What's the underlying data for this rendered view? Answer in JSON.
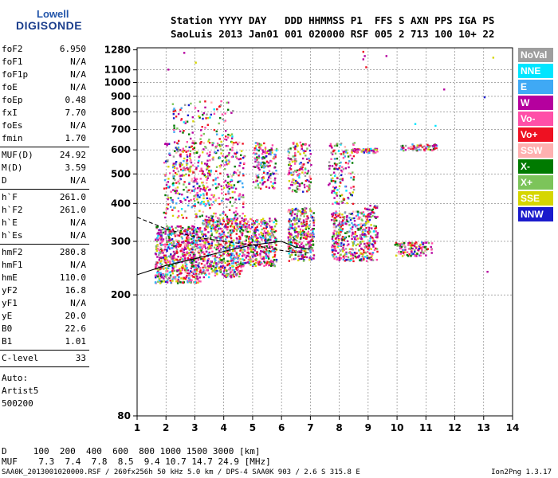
{
  "logo": {
    "line1": "Lowell",
    "line2": "DIGISONDE"
  },
  "header": {
    "row1": "Station YYYY DAY   DDD HHMMSS P1  FFS S AXN PPS IGA PS",
    "row2": "SaoLuis 2013 Jan01 001 020000 RSF 005 2 713 100 10+ 22"
  },
  "params_groups": [
    [
      [
        "foF2",
        "6.950"
      ],
      [
        "foF1",
        "N/A"
      ],
      [
        "foF1p",
        "N/A"
      ],
      [
        "foE",
        "N/A"
      ],
      [
        "foEp",
        "0.48"
      ],
      [
        "fxI",
        "7.70"
      ],
      [
        "foEs",
        "N/A"
      ],
      [
        "fmin",
        "1.70"
      ]
    ],
    [
      [
        "MUF(D)",
        "24.92"
      ],
      [
        "M(D)",
        "3.59"
      ],
      [
        "D",
        "N/A"
      ]
    ],
    [
      [
        "h`F",
        "261.0"
      ],
      [
        "h`F2",
        "261.0"
      ],
      [
        "h`E",
        "N/A"
      ],
      [
        "h`Es",
        "N/A"
      ]
    ],
    [
      [
        "hmF2",
        "280.8"
      ],
      [
        "hmF1",
        "N/A"
      ],
      [
        "hmE",
        "110.0"
      ],
      [
        "yF2",
        "16.8"
      ],
      [
        "yF1",
        "N/A"
      ],
      [
        "yE",
        "20.0"
      ],
      [
        "B0",
        "22.6"
      ],
      [
        "B1",
        "1.01"
      ]
    ],
    [
      [
        "C-level",
        "33"
      ]
    ]
  ],
  "autoscale": [
    "Auto:",
    "Artist5",
    "500200"
  ],
  "legend": [
    {
      "label": "NoVal",
      "color": "#9e9e9e"
    },
    {
      "label": "NNE",
      "color": "#00e5ff"
    },
    {
      "label": "E",
      "color": "#3fa9f5"
    },
    {
      "label": "W",
      "color": "#b5009e"
    },
    {
      "label": "Vo-",
      "color": "#ff4fa8"
    },
    {
      "label": "Vo+",
      "color": "#ee1122"
    },
    {
      "label": "SSW",
      "color": "#ffb0b0"
    },
    {
      "label": "X-",
      "color": "#007a00"
    },
    {
      "label": "X+",
      "color": "#7cc45a"
    },
    {
      "label": "SSE",
      "color": "#d6d600"
    },
    {
      "label": "NNW",
      "color": "#1a1acc"
    }
  ],
  "bottom": {
    "row1": "D     100  200  400  600  800 1000 1500 3000 [km]",
    "row2": "MUF    7.3  7.4  7.8  8.5  9.4 10.7 14.7 24.9 [MHz]"
  },
  "footer": "SAA0K_2013001020000.RSF / 260fx256h 50 kHz 5.0 km / DPS-4 SAA0K 903 / 2.6 S 315.8 E",
  "footer_right": "Ion2Png 1.3.17",
  "chart_data": {
    "type": "scatter",
    "title": "",
    "xlabel": "",
    "ylabel": "",
    "xlim": [
      1,
      14
    ],
    "ylim": [
      80,
      1300
    ],
    "x_ticks": [
      1,
      2,
      3,
      4,
      5,
      6,
      7,
      8,
      9,
      10,
      11,
      12,
      13,
      14
    ],
    "y_ticks": [
      80,
      200,
      300,
      400,
      500,
      600,
      700,
      800,
      900,
      1000,
      1100,
      1280
    ],
    "y_scale": "log",
    "clusters": [
      {
        "x": [
          1.6,
          3.2
        ],
        "y": [
          220,
          340
        ],
        "n": 700
      },
      {
        "x": [
          3.2,
          4.6
        ],
        "y": [
          230,
          360
        ],
        "n": 550
      },
      {
        "x": [
          4.6,
          5.8
        ],
        "y": [
          250,
          360
        ],
        "n": 380
      },
      {
        "x": [
          6.2,
          7.1
        ],
        "y": [
          260,
          390
        ],
        "n": 320
      },
      {
        "x": [
          7.7,
          8.8
        ],
        "y": [
          260,
          380
        ],
        "n": 320
      },
      {
        "x": [
          8.8,
          9.3
        ],
        "y": [
          260,
          400
        ],
        "n": 150
      },
      {
        "x": [
          9.9,
          11.2
        ],
        "y": [
          270,
          300
        ],
        "n": 120
      },
      {
        "x": [
          1.9,
          4.7
        ],
        "y": [
          360,
          640
        ],
        "n": 380
      },
      {
        "x": [
          2.2,
          4.3
        ],
        "y": [
          400,
          880
        ],
        "n": 260
      },
      {
        "x": [
          5.0,
          5.8
        ],
        "y": [
          450,
          640
        ],
        "n": 160
      },
      {
        "x": [
          6.2,
          7.0
        ],
        "y": [
          440,
          640
        ],
        "n": 160
      },
      {
        "x": [
          7.6,
          8.5
        ],
        "y": [
          400,
          640
        ],
        "n": 140
      },
      {
        "x": [
          8.4,
          9.3
        ],
        "y": [
          590,
          610
        ],
        "n": 60
      },
      {
        "x": [
          10.1,
          11.4
        ],
        "y": [
          600,
          630
        ],
        "n": 70
      }
    ],
    "scattered_points": [
      {
        "x": 2.05,
        "y": 1110
      },
      {
        "x": 2.6,
        "y": 1260
      },
      {
        "x": 3.0,
        "y": 1170
      },
      {
        "x": 8.8,
        "y": 1270
      },
      {
        "x": 8.85,
        "y": 1230
      },
      {
        "x": 8.8,
        "y": 1200
      },
      {
        "x": 8.9,
        "y": 1130
      },
      {
        "x": 9.6,
        "y": 1230
      },
      {
        "x": 11.6,
        "y": 955
      },
      {
        "x": 13.0,
        "y": 900
      },
      {
        "x": 13.3,
        "y": 1215
      },
      {
        "x": 10.6,
        "y": 735
      },
      {
        "x": 11.3,
        "y": 725
      },
      {
        "x": 13.1,
        "y": 240
      },
      {
        "x": 4.1,
        "y": 260
      }
    ],
    "profile_lines": [
      {
        "x": [
          1.0,
          2.0,
          3.0,
          4.0,
          5.0,
          6.0,
          6.5,
          7.0
        ],
        "y": [
          233,
          250,
          263,
          278,
          292,
          300,
          287,
          283
        ]
      },
      {
        "x": [
          1.0,
          2.0,
          3.0,
          4.0,
          5.0,
          6.0,
          6.5,
          7.0
        ],
        "y": [
          360,
          330,
          310,
          300,
          292,
          280,
          276,
          275
        ]
      }
    ]
  }
}
